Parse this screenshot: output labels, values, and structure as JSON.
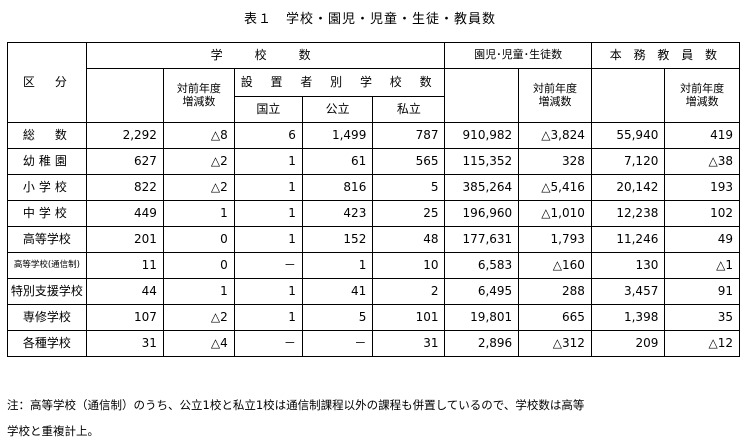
{
  "title": "表１　学校・園児・児童・生徒・教員数",
  "header": {
    "division": "区　分",
    "schools": "学　校　数",
    "change_prev_year": "対前年度\n増減数",
    "by_founder": "設 置 者 別 学 校 数",
    "national": "国立",
    "public": "公立",
    "private": "私立",
    "students": "園児･児童･生徒数",
    "teachers": "本 務 教 員 数"
  },
  "rows": [
    {
      "label": "総　数",
      "schools": "2,292",
      "schools_chg": "△8",
      "national": "6",
      "public": "1,499",
      "private": "787",
      "students": "910,982",
      "students_chg": "△3,824",
      "teachers": "55,940",
      "teachers_chg": "419"
    },
    {
      "label": "幼稚園",
      "schools": "627",
      "schools_chg": "△2",
      "national": "1",
      "public": "61",
      "private": "565",
      "students": "115,352",
      "students_chg": "328",
      "teachers": "7,120",
      "teachers_chg": "△38"
    },
    {
      "label": "小学校",
      "schools": "822",
      "schools_chg": "△2",
      "national": "1",
      "public": "816",
      "private": "5",
      "students": "385,264",
      "students_chg": "△5,416",
      "teachers": "20,142",
      "teachers_chg": "193"
    },
    {
      "label": "中学校",
      "schools": "449",
      "schools_chg": "1",
      "national": "1",
      "public": "423",
      "private": "25",
      "students": "196,960",
      "students_chg": "△1,010",
      "teachers": "12,238",
      "teachers_chg": "102"
    },
    {
      "label": "高等学校",
      "schools": "201",
      "schools_chg": "0",
      "national": "1",
      "public": "152",
      "private": "48",
      "students": "177,631",
      "students_chg": "1,793",
      "teachers": "11,246",
      "teachers_chg": "49"
    },
    {
      "label": "高等学校(通信制)",
      "schools": "11",
      "schools_chg": "0",
      "national": "－",
      "public": "1",
      "private": "10",
      "students": "6,583",
      "students_chg": "△160",
      "teachers": "130",
      "teachers_chg": "△1"
    },
    {
      "label": "特別支援学校",
      "schools": "44",
      "schools_chg": "1",
      "national": "1",
      "public": "41",
      "private": "2",
      "students": "6,495",
      "students_chg": "288",
      "teachers": "3,457",
      "teachers_chg": "91"
    },
    {
      "label": "専修学校",
      "schools": "107",
      "schools_chg": "△2",
      "national": "1",
      "public": "5",
      "private": "101",
      "students": "19,801",
      "students_chg": "665",
      "teachers": "1,398",
      "teachers_chg": "35"
    },
    {
      "label": "各種学校",
      "schools": "31",
      "schools_chg": "△4",
      "national": "－",
      "public": "－",
      "private": "31",
      "students": "2,896",
      "students_chg": "△312",
      "teachers": "209",
      "teachers_chg": "△12"
    }
  ],
  "note_line1": "注：高等学校（通信制）のうち、公立1校と私立1校は通信制課程以外の課程も併置しているので、学校数は高等",
  "note_line2": "学校と重複計上。"
}
